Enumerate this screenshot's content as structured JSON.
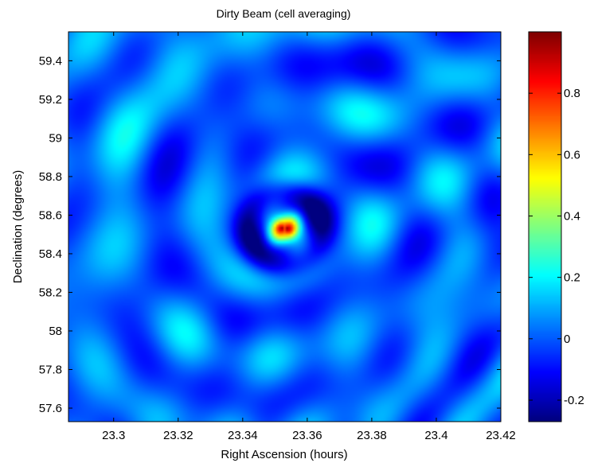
{
  "chart_data": {
    "type": "heatmap",
    "title": "Dirty Beam (cell averaging)",
    "xlabel": "Right Ascension (hours)",
    "ylabel": "Declination (degrees)",
    "xlim": [
      23.286,
      23.42
    ],
    "ylim": [
      57.53,
      59.55
    ],
    "x_ticks": [
      "23.3",
      "23.32",
      "23.34",
      "23.36",
      "23.38",
      "23.4",
      "23.42"
    ],
    "x_tick_values": [
      23.3,
      23.32,
      23.34,
      23.36,
      23.38,
      23.4,
      23.42
    ],
    "y_ticks": [
      "57.6",
      "57.8",
      "58",
      "58.2",
      "58.4",
      "58.6",
      "58.8",
      "59",
      "59.2",
      "59.4"
    ],
    "y_tick_values": [
      57.6,
      57.8,
      58.0,
      58.2,
      58.4,
      58.6,
      58.8,
      59.0,
      59.2,
      59.4
    ],
    "peak": {
      "x": 23.353,
      "y": 58.53,
      "value": 1.0
    },
    "colorbar": {
      "colormap": "jet",
      "range": [
        -0.27,
        1.0
      ],
      "ticks": [
        "-0.2",
        "0",
        "0.2",
        "0.4",
        "0.6",
        "0.8"
      ],
      "tick_values": [
        -0.2,
        0,
        0.2,
        0.4,
        0.6,
        0.8
      ]
    },
    "grid": false
  }
}
